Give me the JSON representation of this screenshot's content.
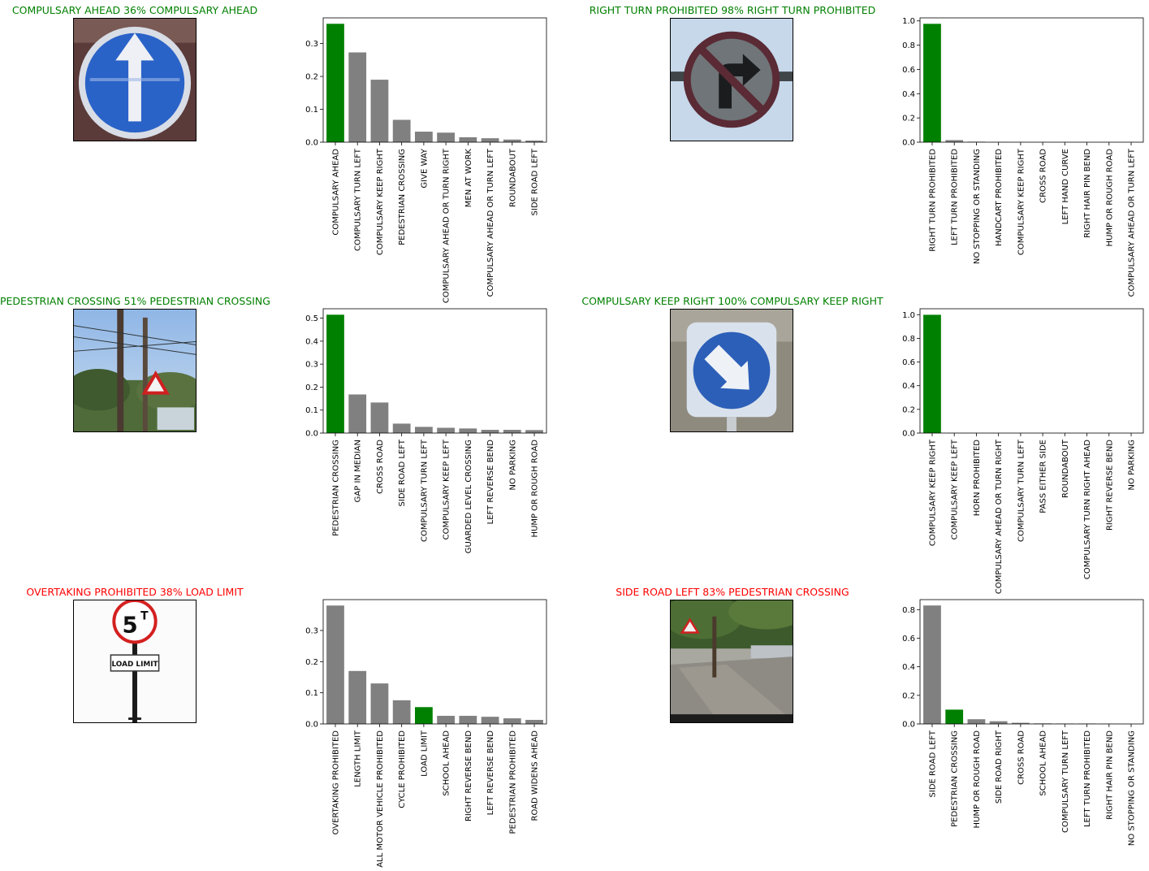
{
  "colors": {
    "correct": "#008000",
    "incorrect": "#ff0000",
    "bar_default": "#808080",
    "bar_true": "#008000"
  },
  "panels": [
    {
      "title": "COMPULSARY AHEAD 36% COMPULSARY AHEAD",
      "correct": true,
      "image_icon": "compulsary-ahead-sign-icon"
    },
    {
      "title": "RIGHT TURN PROHIBITED 98% RIGHT TURN PROHIBITED",
      "correct": true,
      "image_icon": "right-turn-prohibited-sign-icon"
    },
    {
      "title": "PEDESTRIAN CROSSING 51% PEDESTRIAN CROSSING",
      "correct": true,
      "image_icon": "pedestrian-crossing-scene-icon"
    },
    {
      "title": "COMPULSARY KEEP RIGHT 100% COMPULSARY KEEP RIGHT",
      "correct": true,
      "image_icon": "compulsary-keep-right-sign-icon"
    },
    {
      "title": "OVERTAKING PROHIBITED 38% LOAD LIMIT",
      "correct": false,
      "image_icon": "load-limit-sign-icon",
      "image_text": {
        "sign_value": "5",
        "sign_sup": "T",
        "plate": "LOAD LIMIT"
      }
    },
    {
      "title": "SIDE ROAD LEFT 83% PEDESTRIAN CROSSING",
      "correct": false,
      "image_icon": "street-scene-icon"
    }
  ],
  "chart_data": [
    {
      "type": "bar",
      "categories": [
        "COMPULSARY AHEAD",
        "COMPULSARY TURN LEFT",
        "COMPULSARY KEEP RIGHT",
        "PEDESTRIAN CROSSING",
        "GIVE WAY",
        "COMPULSARY AHEAD OR TURN RIGHT",
        "MEN AT WORK",
        "COMPULSARY AHEAD OR TURN LEFT",
        "ROUNDABOUT",
        "SIDE ROAD LEFT"
      ],
      "values": [
        0.36,
        0.273,
        0.19,
        0.068,
        0.032,
        0.029,
        0.015,
        0.012,
        0.008,
        0.005
      ],
      "highlight_index": 0,
      "ylim": [
        0,
        0.378
      ],
      "yticks": [
        0.0,
        0.1,
        0.2,
        0.3
      ],
      "ytick_labels": [
        "0.0",
        "0.1",
        "0.2",
        "0.3"
      ],
      "xlabel": "",
      "ylabel": "",
      "title": ""
    },
    {
      "type": "bar",
      "categories": [
        "RIGHT TURN PROHIBITED",
        "LEFT TURN PROHIBITED",
        "NO STOPPING OR STANDING",
        "HANDCART PROHIBITED",
        "COMPULSARY KEEP RIGHT",
        "CROSS ROAD",
        "LEFT HAND CURVE",
        "RIGHT HAIR PIN BEND",
        "HUMP OR ROUGH ROAD",
        "COMPULSARY AHEAD OR TURN LEFT"
      ],
      "values": [
        0.976,
        0.017,
        0.004,
        0.001,
        0.0005,
        0.0004,
        0.0003,
        0.0002,
        0.0001,
        0.0001
      ],
      "highlight_index": 0,
      "ylim": [
        0,
        1.025
      ],
      "yticks": [
        0.0,
        0.2,
        0.4,
        0.6,
        0.8,
        1.0
      ],
      "ytick_labels": [
        "0.0",
        "0.2",
        "0.4",
        "0.6",
        "0.8",
        "1.0"
      ],
      "xlabel": "",
      "ylabel": "",
      "title": ""
    },
    {
      "type": "bar",
      "categories": [
        "PEDESTRIAN CROSSING",
        "GAP IN MEDIAN",
        "CROSS ROAD",
        "SIDE ROAD LEFT",
        "COMPULSARY TURN LEFT",
        "COMPULSARY KEEP LEFT",
        "GUARDED LEVEL CROSSING",
        "LEFT REVERSE BEND",
        "NO PARKING",
        "HUMP OR ROUGH ROAD"
      ],
      "values": [
        0.515,
        0.168,
        0.133,
        0.041,
        0.027,
        0.023,
        0.02,
        0.014,
        0.014,
        0.013
      ],
      "highlight_index": 0,
      "ylim": [
        0,
        0.541
      ],
      "yticks": [
        0.0,
        0.1,
        0.2,
        0.3,
        0.4,
        0.5
      ],
      "ytick_labels": [
        "0.0",
        "0.1",
        "0.2",
        "0.3",
        "0.4",
        "0.5"
      ],
      "xlabel": "",
      "ylabel": "",
      "title": ""
    },
    {
      "type": "bar",
      "categories": [
        "COMPULSARY KEEP RIGHT",
        "COMPULSARY KEEP LEFT",
        "HORN PROHIBITED",
        "COMPULSARY AHEAD OR TURN RIGHT",
        "COMPULSARY TURN LEFT",
        "PASS EITHER SIDE",
        "ROUNDABOUT",
        "COMPULSARY TURN RIGHT AHEAD",
        "RIGHT REVERSE BEND",
        "NO PARKING"
      ],
      "values": [
        0.999,
        0.0005,
        0.0002,
        0.0001,
        0.0001,
        0.0001,
        0.0001,
        5e-05,
        5e-05,
        5e-05
      ],
      "highlight_index": 0,
      "ylim": [
        0,
        1.05
      ],
      "yticks": [
        0.0,
        0.2,
        0.4,
        0.6,
        0.8,
        1.0
      ],
      "ytick_labels": [
        "0.0",
        "0.2",
        "0.4",
        "0.6",
        "0.8",
        "1.0"
      ],
      "xlabel": "",
      "ylabel": "",
      "title": ""
    },
    {
      "type": "bar",
      "categories": [
        "OVERTAKING PROHIBITED",
        "LENGTH LIMIT",
        "ALL MOTOR VEHICLE PROHIBITED",
        "CYCLE PROHIBITED",
        "LOAD LIMIT",
        "SCHOOL AHEAD",
        "RIGHT REVERSE BEND",
        "LEFT REVERSE BEND",
        "PEDESTRIAN PROHIBITED",
        "ROAD WIDENS AHEAD"
      ],
      "values": [
        0.38,
        0.17,
        0.13,
        0.076,
        0.054,
        0.026,
        0.026,
        0.023,
        0.018,
        0.013
      ],
      "highlight_index": 4,
      "ylim": [
        0,
        0.399
      ],
      "yticks": [
        0.0,
        0.1,
        0.2,
        0.3
      ],
      "ytick_labels": [
        "0.0",
        "0.1",
        "0.2",
        "0.3"
      ],
      "xlabel": "",
      "ylabel": "",
      "title": ""
    },
    {
      "type": "bar",
      "categories": [
        "SIDE ROAD LEFT",
        "PEDESTRIAN CROSSING",
        "HUMP OR ROUGH ROAD",
        "SIDE ROAD RIGHT",
        "CROSS ROAD",
        "SCHOOL AHEAD",
        "COMPULSARY TURN LEFT",
        "LEFT TURN PROHIBITED",
        "RIGHT HAIR PIN BEND",
        "NO STOPPING OR STANDING"
      ],
      "values": [
        0.829,
        0.1,
        0.033,
        0.019,
        0.008,
        0.004,
        0.003,
        0.003,
        0.001,
        0.0005
      ],
      "highlight_index": 1,
      "ylim": [
        0,
        0.87
      ],
      "yticks": [
        0.0,
        0.2,
        0.4,
        0.6,
        0.8
      ],
      "ytick_labels": [
        "0.0",
        "0.2",
        "0.4",
        "0.6",
        "0.8"
      ],
      "xlabel": "",
      "ylabel": "",
      "title": ""
    }
  ]
}
